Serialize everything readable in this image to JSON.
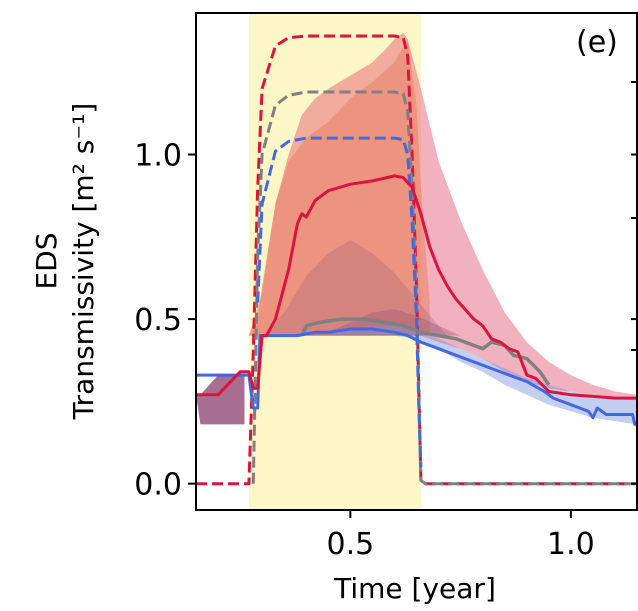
{
  "chart_data": {
    "type": "line",
    "panel_label": "(e)",
    "xlabel": "Time [year]",
    "ylabel_line1": "EDS",
    "ylabel_line2": "Transmissivity [m² s⁻¹]",
    "xlim": [
      0.15,
      1.15
    ],
    "ylim": [
      -0.08,
      1.43
    ],
    "xticks": [
      0.5,
      1.0
    ],
    "xtick_labels": [
      "0.5",
      "1.0"
    ],
    "yticks": [
      0.0,
      0.5,
      1.0
    ],
    "ytick_labels": [
      "0.0",
      "0.5",
      "1.0"
    ],
    "shaded_interval": {
      "x0": 0.27,
      "x1": 0.66,
      "color": "#fdf7c8"
    },
    "bands": [
      {
        "color": "#dd3355",
        "opacity": 0.38,
        "x": [
          0.27,
          0.29,
          0.3,
          0.33,
          0.36,
          0.38,
          0.39,
          0.42,
          0.45,
          0.5,
          0.55,
          0.58,
          0.6,
          0.62,
          0.63,
          0.64,
          0.66,
          0.7,
          0.75,
          0.8,
          0.85,
          0.9,
          0.95,
          1.0,
          1.05,
          1.1,
          1.15
        ],
        "lower": [
          0.45,
          0.45,
          0.45,
          0.45,
          0.45,
          0.45,
          0.45,
          0.45,
          0.45,
          0.45,
          0.45,
          0.45,
          0.45,
          0.45,
          0.45,
          0.45,
          0.45,
          0.43,
          0.41,
          0.38,
          0.34,
          0.31,
          0.29,
          0.28,
          0.27,
          0.26,
          0.25
        ],
        "upper": [
          0.45,
          0.5,
          0.6,
          0.85,
          1.0,
          1.08,
          1.12,
          1.17,
          1.2,
          1.24,
          1.28,
          1.32,
          1.35,
          1.37,
          1.35,
          1.3,
          1.2,
          0.98,
          0.8,
          0.65,
          0.52,
          0.43,
          0.37,
          0.33,
          0.3,
          0.28,
          0.27
        ]
      },
      {
        "color": "#e8826a",
        "opacity": 0.55,
        "x": [
          0.27,
          0.3,
          0.33,
          0.36,
          0.4,
          0.45,
          0.5,
          0.55,
          0.6,
          0.63,
          0.65,
          0.66,
          0.68
        ],
        "lower": [
          0.45,
          0.45,
          0.45,
          0.45,
          0.45,
          0.45,
          0.45,
          0.45,
          0.45,
          0.45,
          0.45,
          0.45,
          0.45
        ],
        "upper": [
          0.45,
          0.58,
          0.85,
          0.98,
          1.05,
          1.1,
          1.17,
          1.22,
          1.28,
          1.35,
          1.15,
          0.9,
          0.55
        ]
      },
      {
        "color": "#9a5a78",
        "opacity": 0.28,
        "x": [
          0.3,
          0.35,
          0.4,
          0.45,
          0.5,
          0.55,
          0.6,
          0.65,
          0.7,
          0.72
        ],
        "lower": [
          0.45,
          0.45,
          0.45,
          0.45,
          0.45,
          0.45,
          0.45,
          0.45,
          0.45,
          0.45
        ],
        "upper": [
          0.45,
          0.52,
          0.63,
          0.7,
          0.74,
          0.7,
          0.64,
          0.56,
          0.48,
          0.45
        ]
      },
      {
        "color": "#9a5a78",
        "opacity": 0.4,
        "x": [
          0.39,
          0.45,
          0.5,
          0.55,
          0.6,
          0.65,
          0.7,
          0.75
        ],
        "lower": [
          0.45,
          0.45,
          0.45,
          0.45,
          0.45,
          0.45,
          0.45,
          0.45
        ],
        "upper": [
          0.45,
          0.46,
          0.49,
          0.52,
          0.53,
          0.51,
          0.48,
          0.45
        ]
      },
      {
        "color": "#7a93de",
        "opacity": 0.45,
        "x": [
          0.45,
          0.5,
          0.55,
          0.6,
          0.65,
          0.7,
          0.75,
          0.8,
          0.85,
          0.9,
          0.95,
          1.0,
          1.05,
          1.1,
          1.15
        ],
        "lower": [
          0.45,
          0.45,
          0.45,
          0.45,
          0.44,
          0.41,
          0.37,
          0.34,
          0.3,
          0.27,
          0.24,
          0.22,
          0.2,
          0.19,
          0.18
        ],
        "upper": [
          0.45,
          0.47,
          0.48,
          0.48,
          0.47,
          0.44,
          0.41,
          0.38,
          0.35,
          0.32,
          0.3,
          0.28,
          0.27,
          0.26,
          0.25
        ]
      },
      {
        "color": "#8b3f6e",
        "opacity": 0.75,
        "x": [
          0.15,
          0.16,
          0.2,
          0.23,
          0.26
        ],
        "lower": [
          0.27,
          0.18,
          0.18,
          0.18,
          0.18
        ],
        "upper": [
          0.27,
          0.27,
          0.33,
          0.33,
          0.33
        ]
      }
    ],
    "series": [
      {
        "color": "#dc143c",
        "dashed": true,
        "width": 3,
        "x": [
          0.15,
          0.27,
          0.28,
          0.29,
          0.3,
          0.33,
          0.36,
          0.4,
          0.5,
          0.6,
          0.62,
          0.63,
          0.64,
          0.65,
          0.655,
          0.66,
          0.67,
          1.15
        ],
        "y": [
          0.0,
          0.0,
          0.4,
          0.9,
          1.2,
          1.33,
          1.355,
          1.36,
          1.36,
          1.36,
          1.355,
          1.3,
          1.0,
          0.6,
          0.3,
          0.01,
          0.0,
          0.0
        ]
      },
      {
        "color": "#808080",
        "dashed": true,
        "width": 3,
        "x": [
          0.28,
          0.29,
          0.3,
          0.33,
          0.36,
          0.4,
          0.5,
          0.6,
          0.62,
          0.63,
          0.64,
          0.65,
          0.655,
          0.66,
          0.67,
          1.15
        ],
        "y": [
          0.0,
          0.7,
          1.0,
          1.15,
          1.18,
          1.19,
          1.19,
          1.19,
          1.185,
          1.13,
          0.9,
          0.55,
          0.27,
          0.01,
          0.0,
          0.0
        ]
      },
      {
        "color": "#4169e1",
        "dashed": true,
        "width": 3,
        "x": [
          0.29,
          0.3,
          0.33,
          0.36,
          0.4,
          0.5,
          0.6,
          0.62,
          0.63,
          0.64,
          0.65,
          0.655,
          0.66
        ],
        "y": [
          0.55,
          0.85,
          1.01,
          1.04,
          1.05,
          1.05,
          1.05,
          1.045,
          1.0,
          0.8,
          0.5,
          0.25,
          0.05
        ]
      },
      {
        "color": "#808080",
        "dashed": false,
        "width": 3.5,
        "x": [
          0.39,
          0.4,
          0.43,
          0.48,
          0.53,
          0.58,
          0.62,
          0.66,
          0.7,
          0.74,
          0.78,
          0.8,
          0.82,
          0.85,
          0.87,
          0.9,
          0.93,
          0.95
        ],
        "y": [
          0.45,
          0.48,
          0.49,
          0.5,
          0.5,
          0.49,
          0.48,
          0.46,
          0.45,
          0.44,
          0.42,
          0.41,
          0.43,
          0.42,
          0.39,
          0.38,
          0.34,
          0.3
        ]
      },
      {
        "color": "#4169e1",
        "dashed": false,
        "width": 3,
        "x": [
          0.15,
          0.27,
          0.275,
          0.28,
          0.29,
          0.295,
          0.3,
          0.38,
          0.42,
          0.45,
          0.5,
          0.55,
          0.6,
          0.63,
          0.66,
          0.7,
          0.74,
          0.78,
          0.82,
          0.86,
          0.9,
          0.94,
          0.96,
          0.98,
          1.0,
          1.02,
          1.04,
          1.05,
          1.06,
          1.08,
          1.1,
          1.14,
          1.145,
          1.15
        ],
        "y": [
          0.33,
          0.33,
          0.28,
          0.23,
          0.23,
          0.45,
          0.45,
          0.45,
          0.46,
          0.46,
          0.47,
          0.47,
          0.46,
          0.45,
          0.43,
          0.41,
          0.39,
          0.37,
          0.35,
          0.33,
          0.31,
          0.28,
          0.26,
          0.25,
          0.24,
          0.23,
          0.22,
          0.2,
          0.23,
          0.21,
          0.21,
          0.21,
          0.18,
          0.18
        ]
      },
      {
        "color": "#dc143c",
        "dashed": false,
        "width": 3,
        "x": [
          0.15,
          0.2,
          0.25,
          0.27,
          0.28,
          0.29,
          0.3,
          0.31,
          0.33,
          0.36,
          0.38,
          0.39,
          0.4,
          0.42,
          0.45,
          0.5,
          0.55,
          0.6,
          0.62,
          0.64,
          0.66,
          0.68,
          0.7,
          0.72,
          0.74,
          0.76,
          0.78,
          0.8,
          0.82,
          0.84,
          0.86,
          0.88,
          0.9,
          0.92,
          0.95,
          1.0,
          1.05,
          1.1,
          1.15
        ],
        "y": [
          0.27,
          0.27,
          0.34,
          0.34,
          0.29,
          0.29,
          0.45,
          0.45,
          0.5,
          0.65,
          0.79,
          0.82,
          0.81,
          0.86,
          0.89,
          0.91,
          0.92,
          0.935,
          0.93,
          0.9,
          0.82,
          0.72,
          0.65,
          0.6,
          0.56,
          0.53,
          0.5,
          0.48,
          0.44,
          0.43,
          0.41,
          0.4,
          0.33,
          0.32,
          0.28,
          0.27,
          0.265,
          0.26,
          0.26
        ]
      }
    ]
  }
}
